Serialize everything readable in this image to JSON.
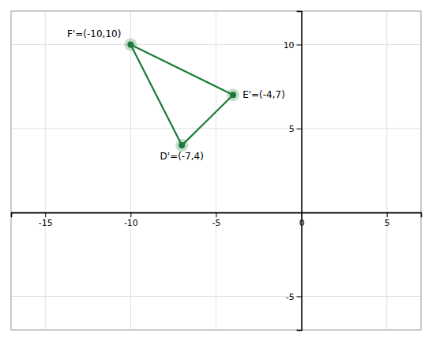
{
  "chart_data": {
    "type": "polygon",
    "x": [
      -10,
      -4,
      -7
    ],
    "values": [
      10,
      7,
      4
    ],
    "color": "#1a7a3a",
    "marker": "circle",
    "annotations": [
      {
        "text": "F'=(-10,10)",
        "x": -10,
        "y": 10
      },
      {
        "text": "E'=(-4,7)",
        "x": -4,
        "y": 7
      },
      {
        "text": "D'=(-7,4)",
        "x": -7,
        "y": 4
      }
    ],
    "xlim": [
      -17,
      7
    ],
    "ylim": [
      -7,
      12
    ],
    "xticks": [
      -15,
      -10,
      -5,
      0,
      5
    ],
    "yticks": [
      -5,
      5,
      10
    ],
    "grid": true
  }
}
